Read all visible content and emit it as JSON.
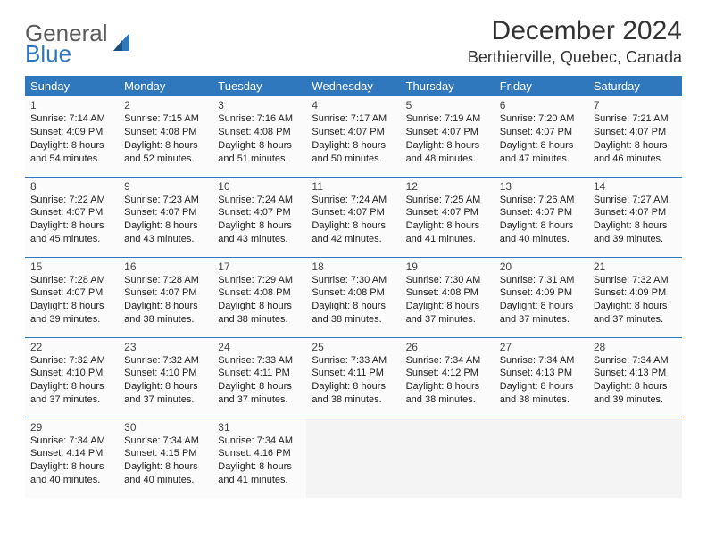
{
  "logo": {
    "general": "General",
    "blue": "Blue"
  },
  "header": {
    "title": "December 2024",
    "location": "Berthierville, Quebec, Canada"
  },
  "colors": {
    "accent": "#2f78bd",
    "text": "#222222",
    "header_text": "#333333",
    "bg": "#ffffff"
  },
  "calendar": {
    "type": "table",
    "columns": [
      "Sunday",
      "Monday",
      "Tuesday",
      "Wednesday",
      "Thursday",
      "Friday",
      "Saturday"
    ],
    "weeks": [
      [
        {
          "day": "1",
          "sunrise": "Sunrise: 7:14 AM",
          "sunset": "Sunset: 4:09 PM",
          "daylight": "Daylight: 8 hours and 54 minutes."
        },
        {
          "day": "2",
          "sunrise": "Sunrise: 7:15 AM",
          "sunset": "Sunset: 4:08 PM",
          "daylight": "Daylight: 8 hours and 52 minutes."
        },
        {
          "day": "3",
          "sunrise": "Sunrise: 7:16 AM",
          "sunset": "Sunset: 4:08 PM",
          "daylight": "Daylight: 8 hours and 51 minutes."
        },
        {
          "day": "4",
          "sunrise": "Sunrise: 7:17 AM",
          "sunset": "Sunset: 4:07 PM",
          "daylight": "Daylight: 8 hours and 50 minutes."
        },
        {
          "day": "5",
          "sunrise": "Sunrise: 7:19 AM",
          "sunset": "Sunset: 4:07 PM",
          "daylight": "Daylight: 8 hours and 48 minutes."
        },
        {
          "day": "6",
          "sunrise": "Sunrise: 7:20 AM",
          "sunset": "Sunset: 4:07 PM",
          "daylight": "Daylight: 8 hours and 47 minutes."
        },
        {
          "day": "7",
          "sunrise": "Sunrise: 7:21 AM",
          "sunset": "Sunset: 4:07 PM",
          "daylight": "Daylight: 8 hours and 46 minutes."
        }
      ],
      [
        {
          "day": "8",
          "sunrise": "Sunrise: 7:22 AM",
          "sunset": "Sunset: 4:07 PM",
          "daylight": "Daylight: 8 hours and 45 minutes."
        },
        {
          "day": "9",
          "sunrise": "Sunrise: 7:23 AM",
          "sunset": "Sunset: 4:07 PM",
          "daylight": "Daylight: 8 hours and 43 minutes."
        },
        {
          "day": "10",
          "sunrise": "Sunrise: 7:24 AM",
          "sunset": "Sunset: 4:07 PM",
          "daylight": "Daylight: 8 hours and 43 minutes."
        },
        {
          "day": "11",
          "sunrise": "Sunrise: 7:24 AM",
          "sunset": "Sunset: 4:07 PM",
          "daylight": "Daylight: 8 hours and 42 minutes."
        },
        {
          "day": "12",
          "sunrise": "Sunrise: 7:25 AM",
          "sunset": "Sunset: 4:07 PM",
          "daylight": "Daylight: 8 hours and 41 minutes."
        },
        {
          "day": "13",
          "sunrise": "Sunrise: 7:26 AM",
          "sunset": "Sunset: 4:07 PM",
          "daylight": "Daylight: 8 hours and 40 minutes."
        },
        {
          "day": "14",
          "sunrise": "Sunrise: 7:27 AM",
          "sunset": "Sunset: 4:07 PM",
          "daylight": "Daylight: 8 hours and 39 minutes."
        }
      ],
      [
        {
          "day": "15",
          "sunrise": "Sunrise: 7:28 AM",
          "sunset": "Sunset: 4:07 PM",
          "daylight": "Daylight: 8 hours and 39 minutes."
        },
        {
          "day": "16",
          "sunrise": "Sunrise: 7:28 AM",
          "sunset": "Sunset: 4:07 PM",
          "daylight": "Daylight: 8 hours and 38 minutes."
        },
        {
          "day": "17",
          "sunrise": "Sunrise: 7:29 AM",
          "sunset": "Sunset: 4:08 PM",
          "daylight": "Daylight: 8 hours and 38 minutes."
        },
        {
          "day": "18",
          "sunrise": "Sunrise: 7:30 AM",
          "sunset": "Sunset: 4:08 PM",
          "daylight": "Daylight: 8 hours and 38 minutes."
        },
        {
          "day": "19",
          "sunrise": "Sunrise: 7:30 AM",
          "sunset": "Sunset: 4:08 PM",
          "daylight": "Daylight: 8 hours and 37 minutes."
        },
        {
          "day": "20",
          "sunrise": "Sunrise: 7:31 AM",
          "sunset": "Sunset: 4:09 PM",
          "daylight": "Daylight: 8 hours and 37 minutes."
        },
        {
          "day": "21",
          "sunrise": "Sunrise: 7:32 AM",
          "sunset": "Sunset: 4:09 PM",
          "daylight": "Daylight: 8 hours and 37 minutes."
        }
      ],
      [
        {
          "day": "22",
          "sunrise": "Sunrise: 7:32 AM",
          "sunset": "Sunset: 4:10 PM",
          "daylight": "Daylight: 8 hours and 37 minutes."
        },
        {
          "day": "23",
          "sunrise": "Sunrise: 7:32 AM",
          "sunset": "Sunset: 4:10 PM",
          "daylight": "Daylight: 8 hours and 37 minutes."
        },
        {
          "day": "24",
          "sunrise": "Sunrise: 7:33 AM",
          "sunset": "Sunset: 4:11 PM",
          "daylight": "Daylight: 8 hours and 37 minutes."
        },
        {
          "day": "25",
          "sunrise": "Sunrise: 7:33 AM",
          "sunset": "Sunset: 4:11 PM",
          "daylight": "Daylight: 8 hours and 38 minutes."
        },
        {
          "day": "26",
          "sunrise": "Sunrise: 7:34 AM",
          "sunset": "Sunset: 4:12 PM",
          "daylight": "Daylight: 8 hours and 38 minutes."
        },
        {
          "day": "27",
          "sunrise": "Sunrise: 7:34 AM",
          "sunset": "Sunset: 4:13 PM",
          "daylight": "Daylight: 8 hours and 38 minutes."
        },
        {
          "day": "28",
          "sunrise": "Sunrise: 7:34 AM",
          "sunset": "Sunset: 4:13 PM",
          "daylight": "Daylight: 8 hours and 39 minutes."
        }
      ],
      [
        {
          "day": "29",
          "sunrise": "Sunrise: 7:34 AM",
          "sunset": "Sunset: 4:14 PM",
          "daylight": "Daylight: 8 hours and 40 minutes."
        },
        {
          "day": "30",
          "sunrise": "Sunrise: 7:34 AM",
          "sunset": "Sunset: 4:15 PM",
          "daylight": "Daylight: 8 hours and 40 minutes."
        },
        {
          "day": "31",
          "sunrise": "Sunrise: 7:34 AM",
          "sunset": "Sunset: 4:16 PM",
          "daylight": "Daylight: 8 hours and 41 minutes."
        },
        null,
        null,
        null,
        null
      ]
    ]
  }
}
